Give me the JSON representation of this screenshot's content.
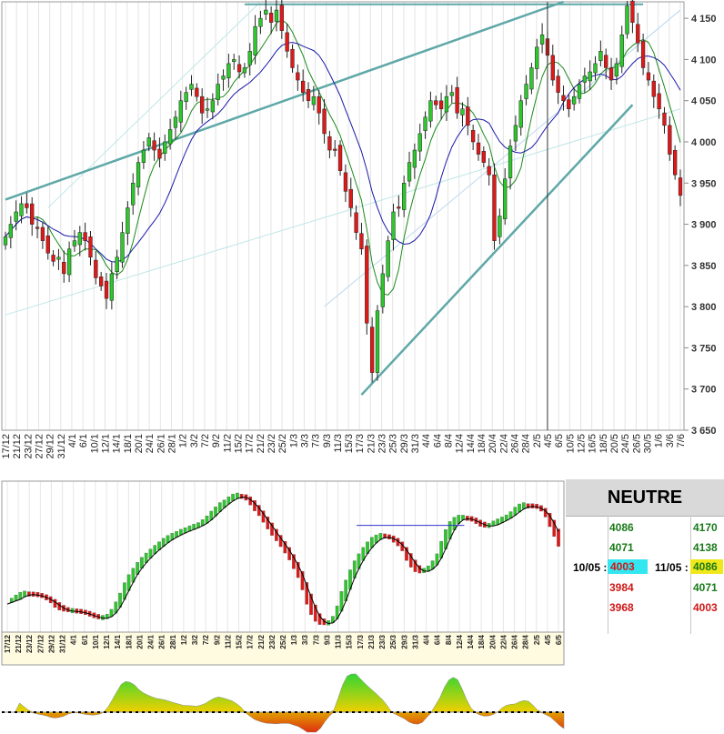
{
  "chart_data": [
    {
      "type": "candlestick",
      "yaxis": {
        "range": [
          3650,
          4170
        ],
        "ticks": [
          "4 150",
          "4 100",
          "4 050",
          "4 000",
          "3 950",
          "3 900",
          "3 850",
          "3 800",
          "3 750",
          "3 700",
          "3 650"
        ],
        "tick_values": [
          4150,
          4100,
          4050,
          4000,
          3950,
          3900,
          3850,
          3800,
          3750,
          3700,
          3650
        ],
        "side": "right"
      },
      "x_labels": [
        "17/12",
        "21/12",
        "23/12",
        "27/12",
        "29/12",
        "31/12",
        "4/1",
        "6/1",
        "10/1",
        "12/1",
        "14/1",
        "18/1",
        "20/1",
        "24/1",
        "26/1",
        "28/1",
        "1/2",
        "3/2",
        "7/2",
        "9/2",
        "11/2",
        "15/2",
        "17/2",
        "21/2",
        "23/2",
        "25/2",
        "1/3",
        "3/3",
        "7/3",
        "9/3",
        "11/3",
        "15/3",
        "17/3",
        "21/3",
        "23/3",
        "25/3",
        "29/3",
        "31/3",
        "4/4",
        "6/4",
        "8/4",
        "12/4",
        "14/4",
        "18/4",
        "20/4",
        "22/4",
        "26/4",
        "28/4",
        "2/5",
        "4/5",
        "6/5",
        "10/5",
        "12/5",
        "16/5",
        "18/5",
        "20/5",
        "24/5",
        "26/5",
        "30/5",
        "1/6",
        "3/6",
        "7/6"
      ],
      "closes": [
        3885,
        3900,
        3915,
        3925,
        3920,
        3900,
        3895,
        3880,
        3865,
        3855,
        3860,
        3840,
        3870,
        3880,
        3890,
        3880,
        3860,
        3835,
        3825,
        3810,
        3840,
        3860,
        3890,
        3920,
        3950,
        3975,
        3990,
        4005,
        3990,
        3980,
        4000,
        4015,
        4030,
        4050,
        4060,
        4070,
        4055,
        4035,
        4040,
        4050,
        4070,
        4080,
        4095,
        4100,
        4085,
        4090,
        4110,
        4140,
        4150,
        4160,
        4145,
        4160,
        4135,
        4110,
        4090,
        4075,
        4060,
        4050,
        4055,
        4035,
        4010,
        3990,
        3990,
        3965,
        3940,
        3920,
        3890,
        3870,
        3780,
        3720,
        3795,
        3840,
        3880,
        3915,
        3920,
        3950,
        3975,
        3990,
        4010,
        4030,
        4050,
        4045,
        4040,
        4055,
        4060,
        4035,
        4040,
        4020,
        4000,
        3985,
        3975,
        3960,
        3880,
        3910,
        3955,
        3995,
        4020,
        4050,
        4070,
        4090,
        4115,
        4130,
        4105,
        4075,
        4060,
        4050,
        4040,
        4055,
        4070,
        4080,
        4085,
        4095,
        4110,
        4090,
        4075,
        4095,
        4130,
        4165,
        4145,
        4120,
        4090,
        4075,
        4055,
        4040,
        4020,
        3985,
        3960,
        3935
      ],
      "close_series_note_excluded": true,
      "moving_averages": [
        {
          "color": "#1a8a1a"
        },
        {
          "color": "#1a1aa8"
        }
      ],
      "horizontal_lines": [
        4167
      ],
      "trendlines": [
        {
          "from": [
            0,
            3930
          ],
          "to": [
            105,
            4170
          ],
          "color": "#5fa8a8"
        },
        {
          "from": [
            67,
            3693
          ],
          "to": [
            118,
            4045
          ],
          "color": "#5fa8a8"
        }
      ],
      "vertical_marker_index": 102
    },
    {
      "type": "bar",
      "name_shown": false,
      "levels": {
        "signal_line": true,
        "horizontal_reference_start": 78,
        "horizontal_reference_end": 102,
        "horizontal_reference_value": 0.77
      },
      "x_labels": [
        "17/12",
        "21/12",
        "23/12",
        "27/12",
        "29/12",
        "31/12",
        "4/1",
        "6/1",
        "10/1",
        "12/1",
        "14/1",
        "18/1",
        "20/1",
        "24/1",
        "26/1",
        "28/1",
        "1/2",
        "3/2",
        "7/2",
        "9/2",
        "11/2",
        "15/2",
        "17/2",
        "21/2",
        "23/2",
        "25/2",
        "1/3",
        "3/3",
        "7/3",
        "9/3",
        "11/3",
        "15/3",
        "17/3",
        "21/3",
        "23/3",
        "25/3",
        "29/3",
        "31/3",
        "4/4",
        "6/4",
        "8/4",
        "12/4",
        "14/4",
        "18/4",
        "20/4",
        "22/4",
        "26/4",
        "28/4",
        "2/5",
        "4/5",
        "6/5"
      ]
    },
    {
      "type": "area",
      "baseline": 0
    }
  ],
  "panel": {
    "title": "NEUTRE",
    "col1": {
      "date_label": "10/05 :",
      "values": [
        "4086",
        "4071",
        "4003",
        "3984",
        "3968"
      ]
    },
    "col2": {
      "date_label": "11/05 :",
      "values": [
        "4170",
        "4138",
        "4086",
        "4071",
        "4003"
      ]
    }
  },
  "colors": {
    "up": "#2cc82c",
    "down": "#e01818",
    "ma_fast": "#1a8a1a",
    "ma_slow": "#1a1aa8",
    "trend": "#5fa8a8",
    "bg": "#ffffff"
  }
}
